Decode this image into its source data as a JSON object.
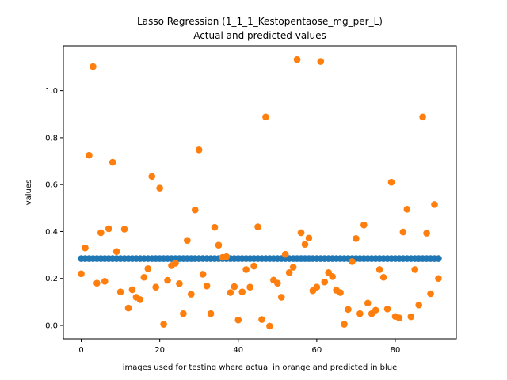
{
  "chart_data": {
    "type": "scatter",
    "title_line1": "Lasso Regression (1_1_1_Kestopentaose_mg_per_L)",
    "title_line2": "Actual and predicted values",
    "xlabel": "images used for testing where actual in orange and predicted in blue",
    "ylabel": "values",
    "xlim": [
      -4.55,
      95.55
    ],
    "ylim": [
      -0.0573,
      1.191
    ],
    "grid": false,
    "x_ticks": [
      0,
      20,
      40,
      60,
      80
    ],
    "x_tick_labels": [
      "0",
      "20",
      "40",
      "60",
      "80"
    ],
    "y_ticks": [
      0.0,
      0.2,
      0.4,
      0.6,
      0.8,
      1.0
    ],
    "y_tick_labels": [
      "0.0",
      "0.2",
      "0.4",
      "0.6",
      "0.8",
      "1.0"
    ],
    "colors": {
      "predicted": "#1f77b4",
      "actual": "#ff7f0e"
    },
    "series": [
      {
        "role": "predicted",
        "x_start": 0,
        "values": [
          0.285,
          0.285,
          0.285,
          0.285,
          0.285,
          0.285,
          0.285,
          0.285,
          0.285,
          0.285,
          0.285,
          0.285,
          0.285,
          0.285,
          0.285,
          0.285,
          0.285,
          0.285,
          0.285,
          0.285,
          0.285,
          0.285,
          0.285,
          0.285,
          0.285,
          0.285,
          0.285,
          0.285,
          0.285,
          0.285,
          0.285,
          0.285,
          0.285,
          0.285,
          0.285,
          0.285,
          0.285,
          0.285,
          0.285,
          0.285,
          0.285,
          0.285,
          0.285,
          0.285,
          0.285,
          0.285,
          0.285,
          0.285,
          0.285,
          0.285,
          0.285,
          0.285,
          0.285,
          0.285,
          0.285,
          0.285,
          0.285,
          0.285,
          0.285,
          0.285,
          0.285,
          0.285,
          0.285,
          0.285,
          0.285,
          0.285,
          0.285,
          0.285,
          0.285,
          0.285,
          0.285,
          0.285,
          0.285,
          0.285,
          0.285,
          0.285,
          0.285,
          0.285,
          0.285,
          0.285,
          0.285,
          0.285,
          0.285,
          0.285,
          0.285,
          0.285,
          0.285,
          0.285,
          0.285,
          0.285,
          0.285,
          0.285
        ]
      },
      {
        "role": "actual",
        "x_start": 0,
        "values": [
          0.22,
          0.33,
          0.725,
          1.103,
          0.18,
          0.395,
          0.188,
          0.412,
          0.695,
          0.315,
          0.143,
          0.41,
          0.074,
          0.152,
          0.12,
          0.11,
          0.205,
          0.242,
          0.635,
          0.163,
          0.585,
          0.005,
          0.192,
          0.255,
          0.265,
          0.178,
          0.05,
          0.362,
          0.133,
          0.492,
          0.748,
          0.218,
          0.168,
          0.05,
          0.418,
          0.342,
          0.29,
          0.293,
          0.14,
          0.165,
          0.023,
          0.143,
          0.238,
          0.163,
          0.253,
          0.42,
          0.025,
          0.888,
          -0.003,
          0.193,
          0.18,
          0.12,
          0.303,
          0.225,
          0.248,
          1.133,
          0.395,
          0.345,
          0.372,
          0.148,
          0.163,
          1.125,
          0.185,
          0.225,
          0.208,
          0.15,
          0.14,
          0.005,
          0.068,
          0.272,
          0.37,
          0.05,
          0.428,
          0.095,
          0.05,
          0.065,
          0.238,
          0.205,
          0.07,
          0.61,
          0.038,
          0.032,
          0.398,
          0.495,
          0.037,
          0.238,
          0.087,
          0.888,
          0.393,
          0.135,
          0.515,
          0.2
        ]
      }
    ]
  }
}
